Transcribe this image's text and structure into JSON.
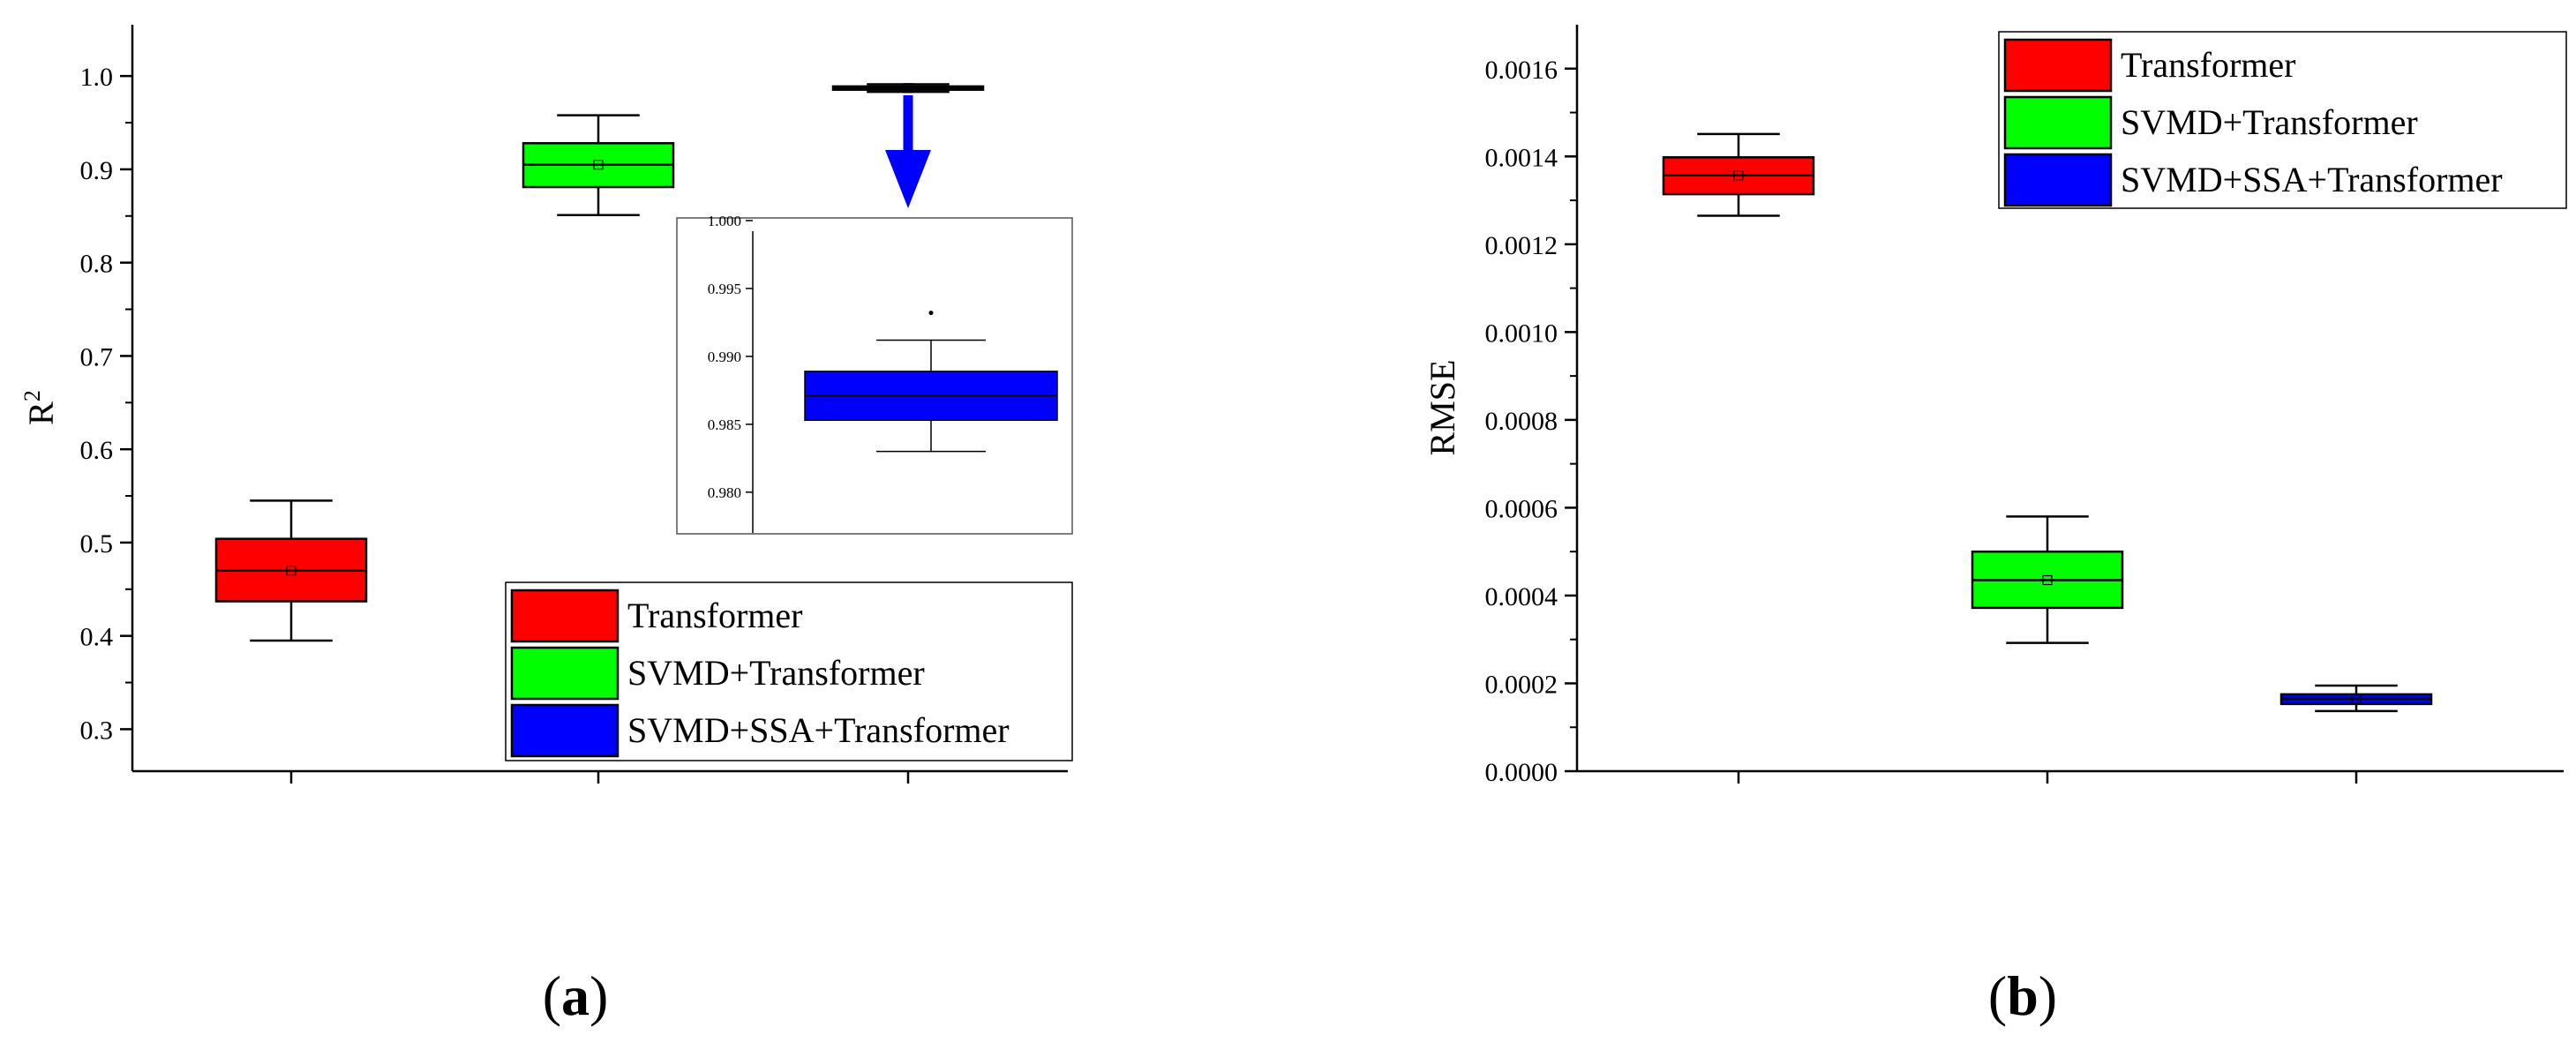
{
  "panels": {
    "a": {
      "label": "a"
    },
    "b": {
      "label": "b"
    }
  },
  "legend_colors": {
    "Transformer": "#ff0000",
    "SVMD+Transformer": "#00ff00",
    "SVMD+SSA+Transformer": "#0000ff"
  },
  "chart_data": [
    {
      "type": "box",
      "panel": "a",
      "title": "",
      "ylabel": "R2",
      "ylim": [
        0.255,
        1.055
      ],
      "yticks": [
        "0.3",
        "0.4",
        "0.5",
        "0.6",
        "0.7",
        "0.8",
        "0.9",
        "1.0"
      ],
      "legend": [
        "Transformer",
        "SVMD+Transformer",
        "SVMD+SSA+Transformer"
      ],
      "legend_position": "bottom-right",
      "series": [
        {
          "name": "Transformer",
          "color": "#ff0000",
          "whisker_low": 0.395,
          "q1": 0.437,
          "median": 0.47,
          "q3": 0.504,
          "whisker_high": 0.545,
          "mean": 0.47
        },
        {
          "name": "SVMD+Transformer",
          "color": "#00ff00",
          "whisker_low": 0.851,
          "q1": 0.881,
          "median": 0.905,
          "q3": 0.928,
          "whisker_high": 0.958,
          "mean": 0.905
        },
        {
          "name": "SVMD+SSA+Transformer",
          "color": "#0000ff",
          "whisker_low": 0.983,
          "q1": 0.9853,
          "median": 0.9871,
          "q3": 0.9889,
          "whisker_high": 0.9912,
          "mean": 0.9871,
          "outliers": [
            0.9932
          ]
        }
      ],
      "inset": {
        "ylim": [
          0.977,
          1.0
        ],
        "yticks": [
          "1.000",
          "0.995",
          "0.990",
          "0.985",
          "0.980"
        ]
      }
    },
    {
      "type": "box",
      "panel": "b",
      "title": "",
      "ylabel": "RMSE",
      "ylim": [
        0.0,
        0.0017
      ],
      "yticks": [
        "0.0000",
        "0.0002",
        "0.0004",
        "0.0006",
        "0.0008",
        "0.0010",
        "0.0012",
        "0.0014",
        "0.0016"
      ],
      "legend": [
        "Transformer",
        "SVMD+Transformer",
        "SVMD+SSA+Transformer"
      ],
      "legend_position": "top-right",
      "series": [
        {
          "name": "Transformer",
          "color": "#ff0000",
          "whisker_low": 0.001265,
          "q1": 0.001314,
          "median": 0.001357,
          "q3": 0.001398,
          "whisker_high": 0.001451,
          "mean": 0.001357
        },
        {
          "name": "SVMD+Transformer",
          "color": "#00ff00",
          "whisker_low": 0.000292,
          "q1": 0.000372,
          "median": 0.000435,
          "q3": 0.0005,
          "whisker_high": 0.00058,
          "mean": 0.000435
        },
        {
          "name": "SVMD+SSA+Transformer",
          "color": "#0000ff",
          "whisker_low": 0.000137,
          "q1": 0.000153,
          "median": 0.000165,
          "q3": 0.000175,
          "whisker_high": 0.000195,
          "mean": 0.000165
        }
      ]
    }
  ]
}
